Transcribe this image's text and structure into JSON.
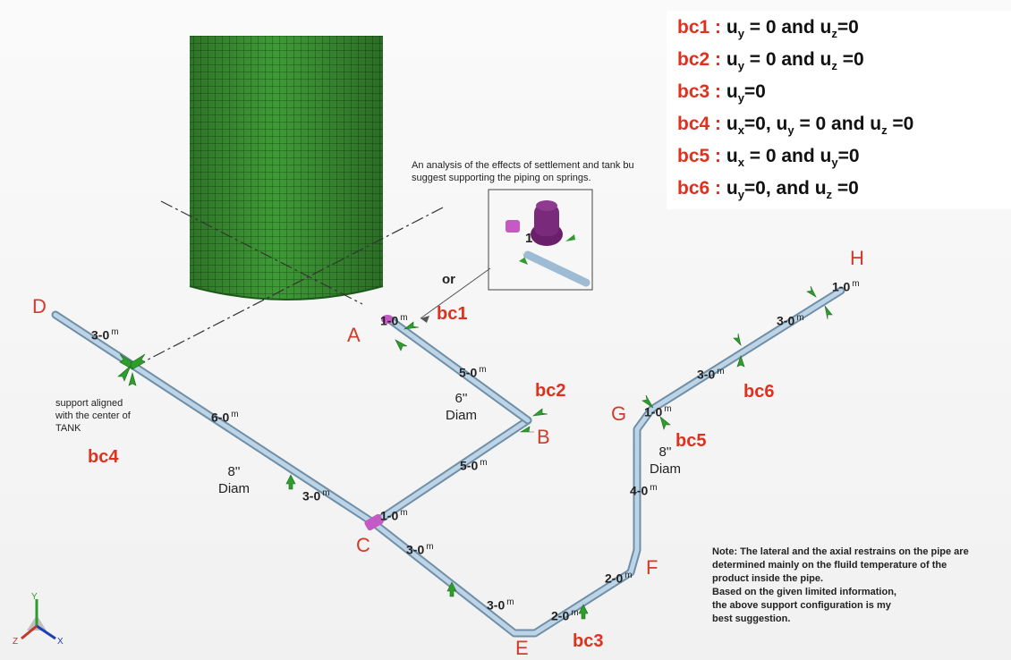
{
  "legend": {
    "rows": [
      {
        "id": "bc1",
        "sep": " : ",
        "parts": [
          [
            "u",
            "y",
            " = 0 and "
          ],
          [
            "u",
            "z",
            "=0"
          ]
        ]
      },
      {
        "id": "bc2",
        "sep": " : ",
        "parts": [
          [
            "u",
            "y",
            " = 0 and "
          ],
          [
            "u",
            "z",
            " =0"
          ]
        ]
      },
      {
        "id": "bc3",
        "sep": " : ",
        "parts": [
          [
            "u",
            "y",
            "=0"
          ]
        ]
      },
      {
        "id": "bc4",
        "sep": " : ",
        "parts": [
          [
            "u",
            "x",
            "=0, "
          ],
          [
            "u",
            "y",
            " = 0 and "
          ],
          [
            "u",
            "z",
            " =0"
          ]
        ]
      },
      {
        "id": "bc5",
        "sep": " : ",
        "parts": [
          [
            "u",
            "x",
            " = 0 and "
          ],
          [
            "u",
            "y",
            "=0"
          ]
        ]
      },
      {
        "id": "bc6",
        "sep": " : ",
        "parts": [
          [
            "u",
            "y",
            "=0, and "
          ],
          [
            "u",
            "z",
            " =0"
          ]
        ]
      }
    ]
  },
  "nodes": {
    "A": "A",
    "B": "B",
    "C": "C",
    "D": "D",
    "E": "E",
    "F": "F",
    "G": "G",
    "H": "H"
  },
  "bc_labels": {
    "bc1": "bc1",
    "bc2": "bc2",
    "bc3": "bc3",
    "bc4": "bc4",
    "bc5": "bc5",
    "bc6": "bc6"
  },
  "dimensions": {
    "unit": "m",
    "d_seg": "3-0",
    "dc_a": "6-0",
    "dc_b": "3-0",
    "a_seg": "1-0",
    "ab_seg": "5-0",
    "cb_seg": "5-0",
    "c_seg": "1-0",
    "ce_a": "3-0",
    "ce_b": "3-0",
    "ef_seg": "2-0",
    "fe_near": "2-0",
    "fg_seg": "4-0",
    "g_seg": "1-0",
    "gh_a": "3-0",
    "gh_b": "3-0",
    "h_seg": "1-0"
  },
  "diameters": {
    "six": {
      "size": "6''",
      "word": "Diam"
    },
    "eight_main": {
      "size": "8''",
      "word": "Diam"
    },
    "eight_right": {
      "size": "8''",
      "word": "Diam"
    }
  },
  "annotations": {
    "settlement_line1": "An analysis of the effects of settlement and tank bu",
    "settlement_line2": "suggest supporting the piping on springs.",
    "or": "or",
    "spring_num": "1",
    "support_line1": "support aligned",
    "support_line2": "with the center of",
    "support_line3": "TANK",
    "note_line1": "Note: The lateral and the axial restrains on the pipe are",
    "note_line2": "determined mainly on the fluild temperature of the",
    "note_line3": "product inside the pipe.",
    "note_line4": "Based on the given limited information,",
    "note_line5": "the above support configuration is my",
    "note_line6": "best suggestion."
  },
  "axes": {
    "y": "Y",
    "x": "X",
    "z": "Z"
  },
  "colors": {
    "label_red": "#e0301e",
    "node_red": "#d23a2c",
    "tank_green": "#2f8a2a",
    "pipe": "#a9c6dc",
    "support_green": "#2e9d2e",
    "spring_purple": "#7a2a7a"
  }
}
